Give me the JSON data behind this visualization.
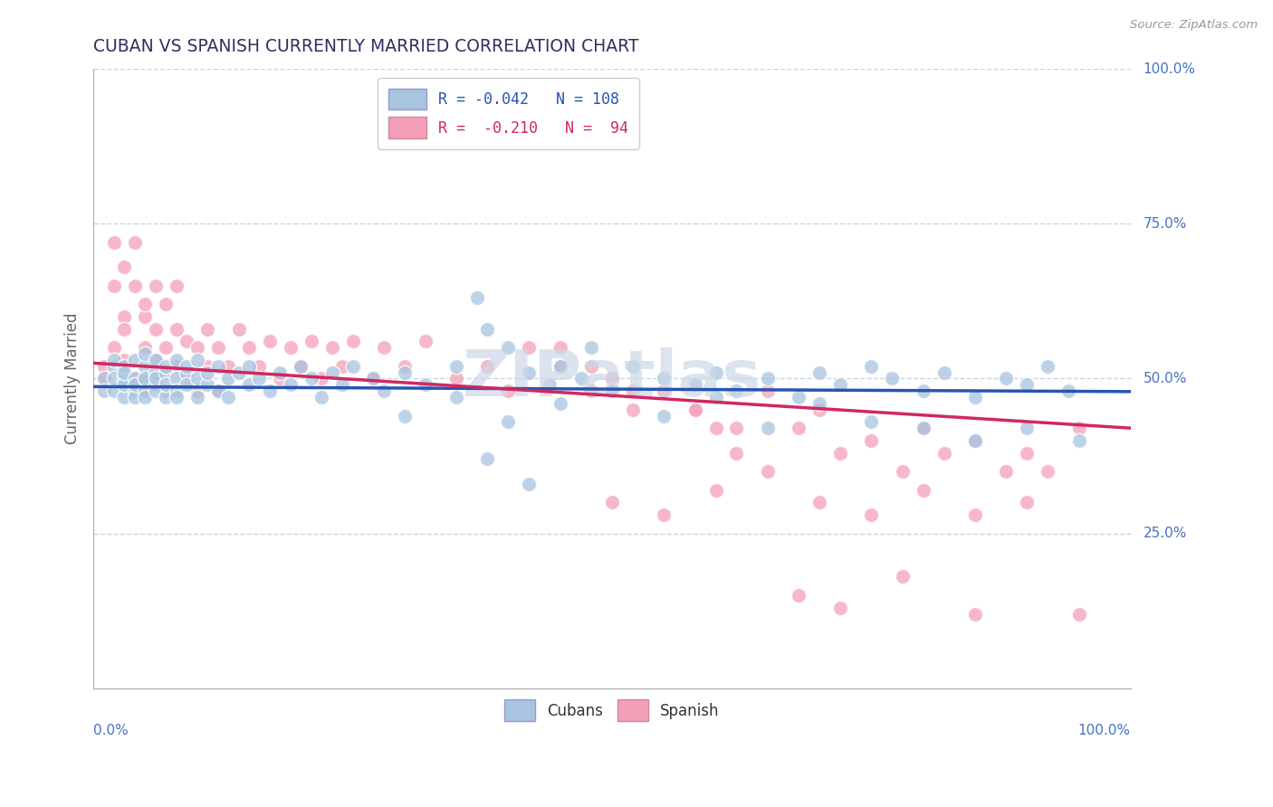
{
  "title": "CUBAN VS SPANISH CURRENTLY MARRIED CORRELATION CHART",
  "source": "Source: ZipAtlas.com",
  "ylabel": "Currently Married",
  "R_blue": -0.042,
  "N_blue": 108,
  "R_pink": -0.21,
  "N_pink": 94,
  "blue_color": "#a8c4e0",
  "blue_edge_color": "#7aaad0",
  "pink_color": "#f4a0b8",
  "pink_edge_color": "#e87090",
  "blue_line_color": "#2855b0",
  "pink_line_color": "#d02860",
  "title_color": "#303060",
  "watermark": "ZIPatlas",
  "watermark_color": "#ccd8e8",
  "grid_color": "#c8d4e4",
  "background_color": "#ffffff",
  "yticks": [
    0.25,
    0.5,
    0.75,
    1.0
  ],
  "ytick_labels": [
    "25.0%",
    "50.0%",
    "75.0%",
    "100.0%"
  ],
  "axis_label_color": "#4472c4",
  "blue_x": [
    0.01,
    0.01,
    0.02,
    0.02,
    0.02,
    0.02,
    0.03,
    0.03,
    0.03,
    0.03,
    0.03,
    0.04,
    0.04,
    0.04,
    0.04,
    0.04,
    0.05,
    0.05,
    0.05,
    0.05,
    0.05,
    0.05,
    0.06,
    0.06,
    0.06,
    0.06,
    0.06,
    0.07,
    0.07,
    0.07,
    0.07,
    0.08,
    0.08,
    0.08,
    0.08,
    0.09,
    0.09,
    0.09,
    0.1,
    0.1,
    0.1,
    0.11,
    0.11,
    0.12,
    0.12,
    0.13,
    0.13,
    0.14,
    0.15,
    0.15,
    0.16,
    0.17,
    0.18,
    0.19,
    0.2,
    0.21,
    0.22,
    0.23,
    0.24,
    0.25,
    0.27,
    0.28,
    0.3,
    0.32,
    0.35,
    0.37,
    0.38,
    0.4,
    0.42,
    0.44,
    0.45,
    0.47,
    0.48,
    0.5,
    0.52,
    0.55,
    0.58,
    0.6,
    0.62,
    0.65,
    0.68,
    0.7,
    0.72,
    0.75,
    0.77,
    0.8,
    0.82,
    0.85,
    0.88,
    0.9,
    0.92,
    0.94,
    0.3,
    0.35,
    0.4,
    0.45,
    0.5,
    0.55,
    0.6,
    0.65,
    0.7,
    0.75,
    0.8,
    0.85,
    0.9,
    0.95,
    0.42,
    0.38
  ],
  "blue_y": [
    0.5,
    0.48,
    0.52,
    0.48,
    0.5,
    0.53,
    0.47,
    0.5,
    0.52,
    0.49,
    0.51,
    0.48,
    0.5,
    0.53,
    0.47,
    0.49,
    0.5,
    0.48,
    0.52,
    0.47,
    0.5,
    0.54,
    0.49,
    0.51,
    0.48,
    0.5,
    0.53,
    0.47,
    0.51,
    0.49,
    0.52,
    0.5,
    0.48,
    0.53,
    0.47,
    0.51,
    0.49,
    0.52,
    0.5,
    0.47,
    0.53,
    0.49,
    0.51,
    0.48,
    0.52,
    0.5,
    0.47,
    0.51,
    0.49,
    0.52,
    0.5,
    0.48,
    0.51,
    0.49,
    0.52,
    0.5,
    0.47,
    0.51,
    0.49,
    0.52,
    0.5,
    0.48,
    0.51,
    0.49,
    0.52,
    0.63,
    0.58,
    0.55,
    0.51,
    0.49,
    0.52,
    0.5,
    0.55,
    0.48,
    0.52,
    0.5,
    0.49,
    0.51,
    0.48,
    0.5,
    0.47,
    0.51,
    0.49,
    0.52,
    0.5,
    0.48,
    0.51,
    0.47,
    0.5,
    0.49,
    0.52,
    0.48,
    0.44,
    0.47,
    0.43,
    0.46,
    0.48,
    0.44,
    0.47,
    0.42,
    0.46,
    0.43,
    0.42,
    0.4,
    0.42,
    0.4,
    0.33,
    0.37
  ],
  "pink_x": [
    0.01,
    0.01,
    0.02,
    0.02,
    0.02,
    0.03,
    0.03,
    0.03,
    0.03,
    0.04,
    0.04,
    0.04,
    0.05,
    0.05,
    0.05,
    0.05,
    0.06,
    0.06,
    0.06,
    0.07,
    0.07,
    0.07,
    0.08,
    0.08,
    0.08,
    0.09,
    0.09,
    0.1,
    0.1,
    0.11,
    0.11,
    0.12,
    0.12,
    0.13,
    0.14,
    0.15,
    0.16,
    0.17,
    0.18,
    0.19,
    0.2,
    0.21,
    0.22,
    0.23,
    0.24,
    0.25,
    0.27,
    0.28,
    0.3,
    0.32,
    0.35,
    0.38,
    0.4,
    0.42,
    0.45,
    0.48,
    0.5,
    0.52,
    0.55,
    0.58,
    0.6,
    0.62,
    0.65,
    0.68,
    0.7,
    0.72,
    0.75,
    0.78,
    0.8,
    0.82,
    0.85,
    0.88,
    0.9,
    0.92,
    0.95,
    0.5,
    0.55,
    0.6,
    0.65,
    0.7,
    0.75,
    0.8,
    0.85,
    0.9,
    0.95,
    0.45,
    0.48,
    0.52,
    0.58,
    0.62,
    0.68,
    0.72,
    0.78,
    0.85
  ],
  "pink_y": [
    0.5,
    0.52,
    0.65,
    0.72,
    0.55,
    0.68,
    0.6,
    0.53,
    0.58,
    0.65,
    0.5,
    0.72,
    0.55,
    0.6,
    0.48,
    0.62,
    0.53,
    0.58,
    0.65,
    0.55,
    0.62,
    0.48,
    0.58,
    0.52,
    0.65,
    0.56,
    0.5,
    0.55,
    0.48,
    0.58,
    0.52,
    0.55,
    0.48,
    0.52,
    0.58,
    0.55,
    0.52,
    0.56,
    0.5,
    0.55,
    0.52,
    0.56,
    0.5,
    0.55,
    0.52,
    0.56,
    0.5,
    0.55,
    0.52,
    0.56,
    0.5,
    0.52,
    0.48,
    0.55,
    0.52,
    0.48,
    0.5,
    0.45,
    0.48,
    0.45,
    0.42,
    0.38,
    0.48,
    0.42,
    0.45,
    0.38,
    0.4,
    0.35,
    0.42,
    0.38,
    0.4,
    0.35,
    0.38,
    0.35,
    0.42,
    0.3,
    0.28,
    0.32,
    0.35,
    0.3,
    0.28,
    0.32,
    0.28,
    0.3,
    0.12,
    0.55,
    0.52,
    0.48,
    0.45,
    0.42,
    0.15,
    0.13,
    0.18,
    0.12
  ]
}
